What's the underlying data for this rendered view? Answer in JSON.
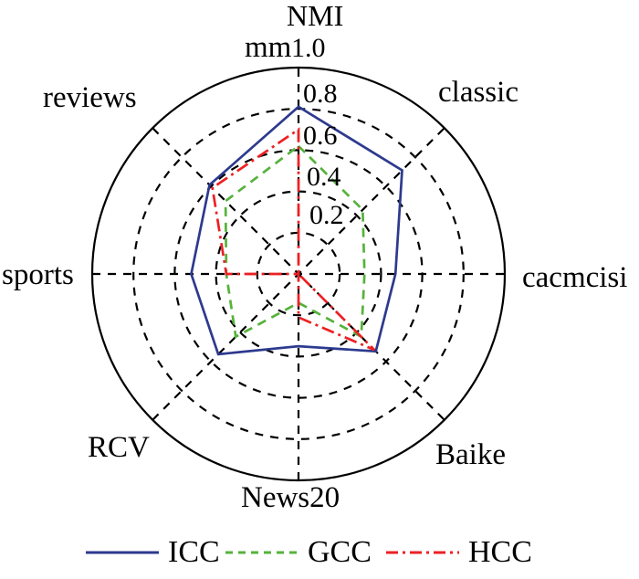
{
  "chart_data": {
    "type": "radar",
    "title": "NMI",
    "categories": [
      "mm",
      "classic",
      "cacmcisi",
      "Baike",
      "News20",
      "RCV",
      "sports",
      "reviews"
    ],
    "start_angle_deg": -90,
    "direction": "clockwise",
    "r_max": 1.0,
    "r_ticks": [
      0.2,
      0.4,
      0.6,
      0.8,
      1.0
    ],
    "tick_labels": [
      "1.0",
      "0.8",
      "0.6",
      "0.4",
      "0.2"
    ],
    "grid": {
      "style": "dashed",
      "color": "#000000",
      "spokes": 8
    },
    "legend_position": "bottom",
    "series": [
      {
        "name": "ICC",
        "color": "#2d3a8e",
        "style": "solid",
        "values": [
          0.81,
          0.71,
          0.47,
          0.53,
          0.35,
          0.55,
          0.52,
          0.61
        ]
      },
      {
        "name": "GCC",
        "color": "#56b23b",
        "style": "dashed",
        "values": [
          0.62,
          0.44,
          0.32,
          0.43,
          0.14,
          0.43,
          0.35,
          0.5
        ]
      },
      {
        "name": "HCC",
        "color": "#ed2024",
        "style": "dash-dot",
        "values": [
          0.7,
          0.0,
          0.0,
          0.52,
          0.21,
          0.0,
          0.35,
          0.59
        ]
      }
    ]
  }
}
